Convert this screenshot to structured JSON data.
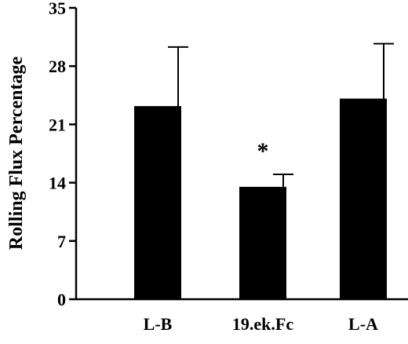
{
  "chart_data": {
    "type": "bar",
    "ylabel": "Rolling Flux Percentage",
    "categories": [
      "L-B",
      "19.ek.Fc",
      "L-A"
    ],
    "values": [
      23.2,
      13.5,
      24.1
    ],
    "errors": [
      7.1,
      1.5,
      6.6
    ],
    "ylim": [
      0,
      35
    ],
    "yticks": [
      0,
      7,
      14,
      21,
      28,
      35
    ],
    "ytick_labels": [
      "0",
      "7",
      "14",
      "21",
      "28",
      "35"
    ],
    "annotations": [
      {
        "category": "19.ek.Fc",
        "text": "*"
      }
    ],
    "grid": false,
    "legend": "none",
    "bar_color": "#000000"
  }
}
